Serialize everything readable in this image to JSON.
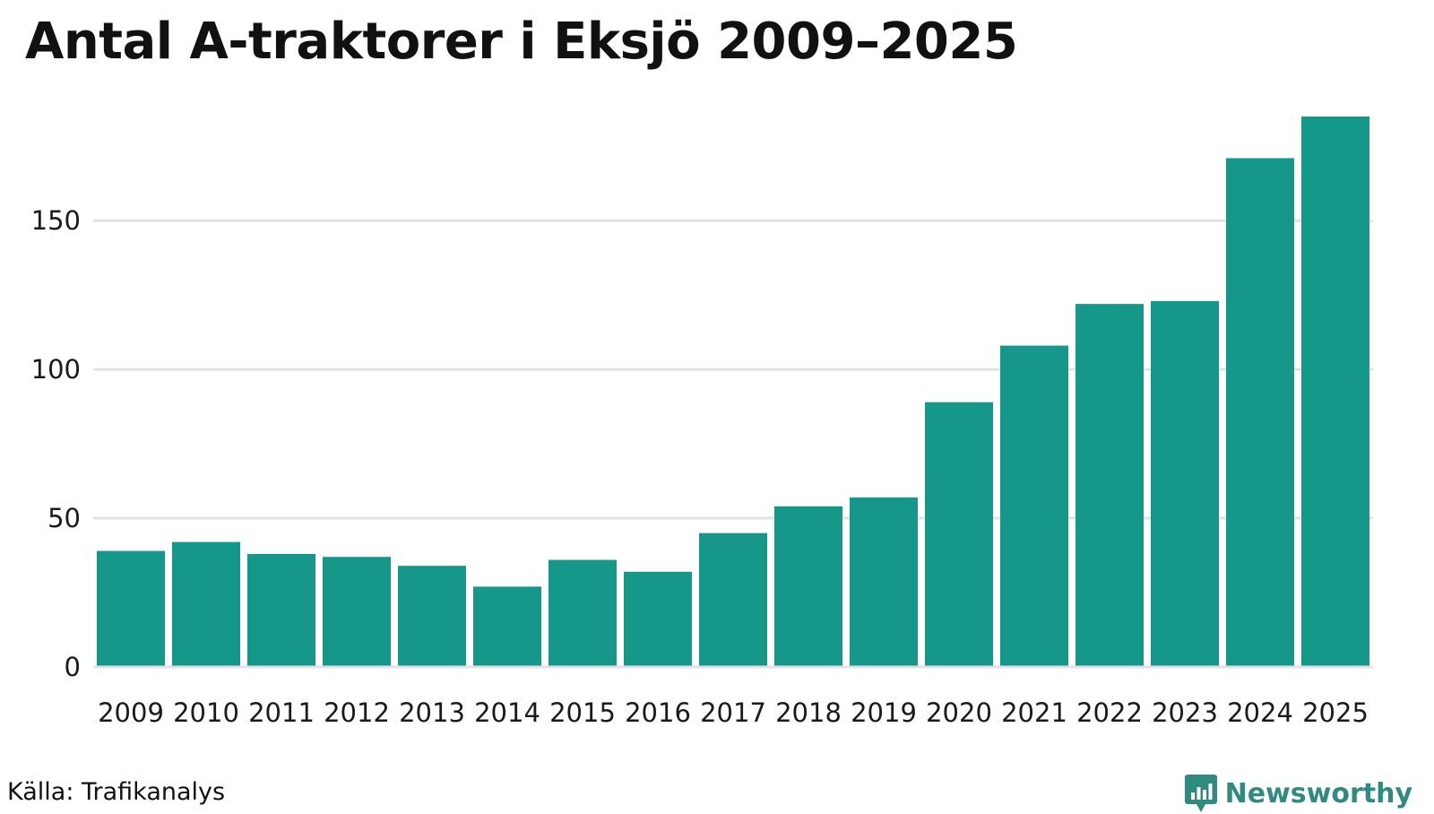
{
  "chart_data": {
    "type": "bar",
    "title": "Antal A-traktorer i Eksjö 2009–2025",
    "xlabel": "",
    "ylabel": "",
    "categories": [
      "2009",
      "2010",
      "2011",
      "2012",
      "2013",
      "2014",
      "2015",
      "2016",
      "2017",
      "2018",
      "2019",
      "2020",
      "2021",
      "2022",
      "2023",
      "2024",
      "2025"
    ],
    "values": [
      39,
      42,
      38,
      37,
      34,
      27,
      36,
      32,
      45,
      54,
      57,
      89,
      108,
      122,
      123,
      171,
      185
    ],
    "ylim": [
      0,
      185
    ],
    "yticks": [
      0,
      50,
      100,
      150
    ],
    "grid": true,
    "bar_color": "#15978a",
    "grid_color": "#e2e2e6"
  },
  "footer": {
    "source": "Källa: Trafikanalys",
    "brand": "Newsworthy",
    "brand_icon": "newsworthy-logo-icon",
    "brand_color": "#2f8a80"
  }
}
